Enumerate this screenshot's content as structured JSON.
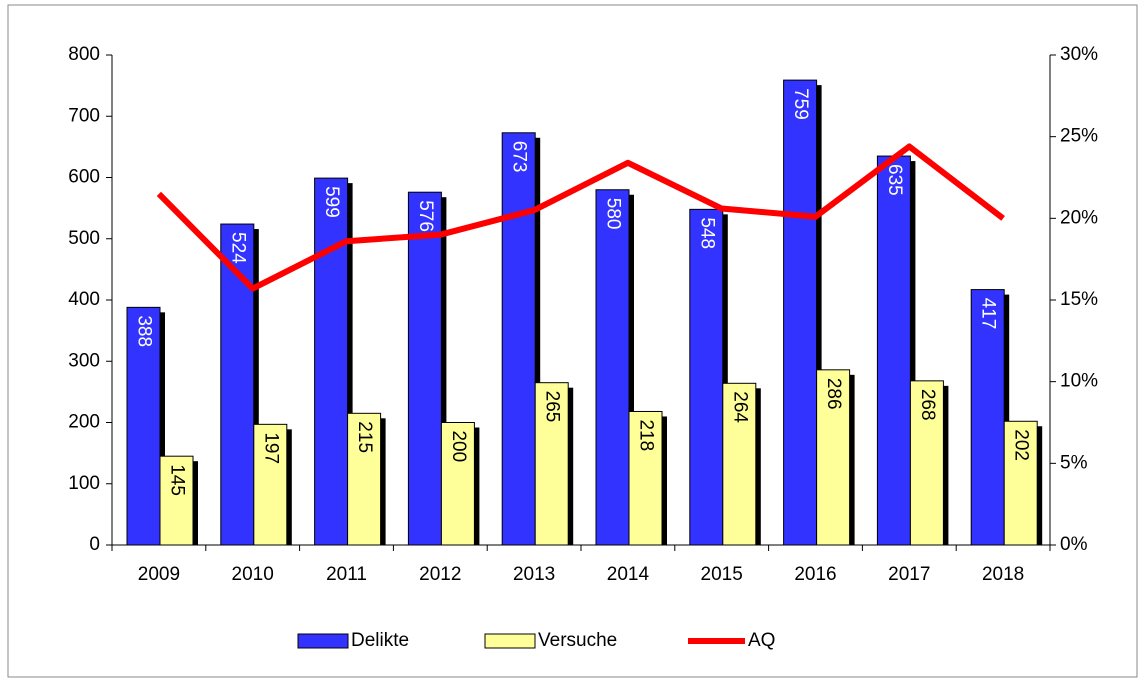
{
  "chart_data": {
    "type": "bar",
    "categories": [
      "2009",
      "2010",
      "2011",
      "2012",
      "2013",
      "2014",
      "2015",
      "2016",
      "2017",
      "2018"
    ],
    "series": [
      {
        "name": "Delikte",
        "color": "#3333ff",
        "values": [
          388,
          524,
          599,
          576,
          673,
          580,
          548,
          759,
          635,
          417
        ]
      },
      {
        "name": "Versuche",
        "color": "#ffff99",
        "values": [
          145,
          197,
          215,
          200,
          265,
          218,
          264,
          286,
          268,
          202
        ]
      },
      {
        "name": "AQ",
        "type": "line",
        "axis": "y2",
        "color": "#ff0000",
        "values": [
          21.5,
          15.7,
          18.6,
          19.0,
          20.5,
          23.4,
          20.6,
          20.1,
          24.4,
          20.0
        ]
      }
    ],
    "ylim": [
      0,
      800
    ],
    "yticks": [
      0,
      100,
      200,
      300,
      400,
      500,
      600,
      700,
      800
    ],
    "y2lim": [
      0,
      30
    ],
    "y2ticks": [
      {
        "value": 0,
        "label": "0%"
      },
      {
        "value": 5,
        "label": "5%"
      },
      {
        "value": 10,
        "label": "10%"
      },
      {
        "value": 15,
        "label": "15%"
      },
      {
        "value": 20,
        "label": "20%"
      },
      {
        "value": 25,
        "label": "25%"
      },
      {
        "value": 30,
        "label": "30%"
      }
    ],
    "legend": "bottom"
  }
}
